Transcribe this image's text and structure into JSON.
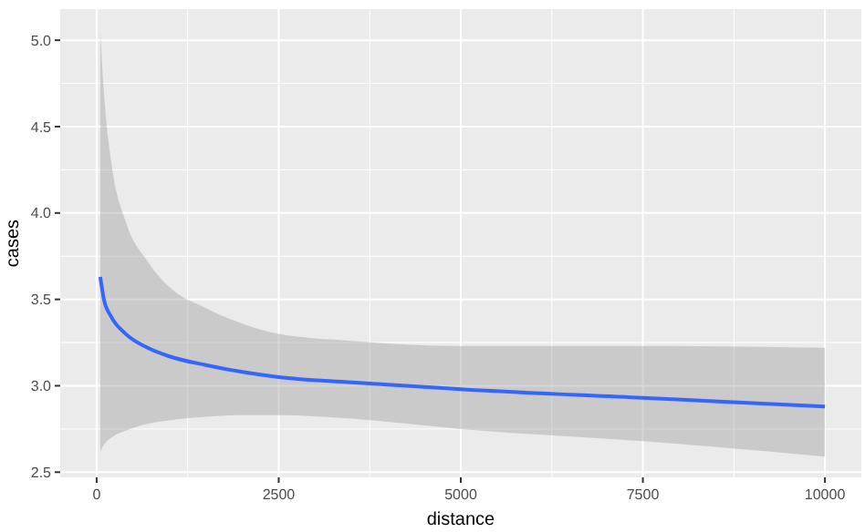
{
  "chart_data": {
    "type": "line",
    "xlabel": "distance",
    "ylabel": "cases",
    "xlim": [
      -500,
      10500
    ],
    "ylim": [
      2.47,
      5.18
    ],
    "xticks": [
      0,
      2500,
      5000,
      7500,
      10000
    ],
    "yticks": [
      {
        "value": 2.5,
        "label": "2.5"
      },
      {
        "value": 3,
        "label": "3.0"
      },
      {
        "value": 3.5,
        "label": "3.5"
      },
      {
        "value": 4,
        "label": "4.0"
      },
      {
        "value": 4.5,
        "label": "4.5"
      },
      {
        "value": 5,
        "label": "5.0"
      }
    ],
    "grid": true,
    "series": [
      {
        "color": "#3366ff",
        "x": [
          50,
          100,
          200,
          400,
          700,
          1000,
          1500,
          2000,
          2500,
          3500,
          5000,
          7500,
          10000
        ],
        "values": [
          3.63,
          3.5,
          3.4,
          3.3,
          3.22,
          3.17,
          3.12,
          3.08,
          3.05,
          3.02,
          2.98,
          2.93,
          2.88
        ],
        "lower": [
          2.62,
          2.66,
          2.7,
          2.74,
          2.78,
          2.8,
          2.82,
          2.83,
          2.83,
          2.81,
          2.75,
          2.68,
          2.59
        ],
        "upper": [
          5.05,
          4.7,
          4.3,
          3.95,
          3.72,
          3.57,
          3.45,
          3.36,
          3.3,
          3.26,
          3.23,
          3.23,
          3.22
        ]
      }
    ]
  }
}
